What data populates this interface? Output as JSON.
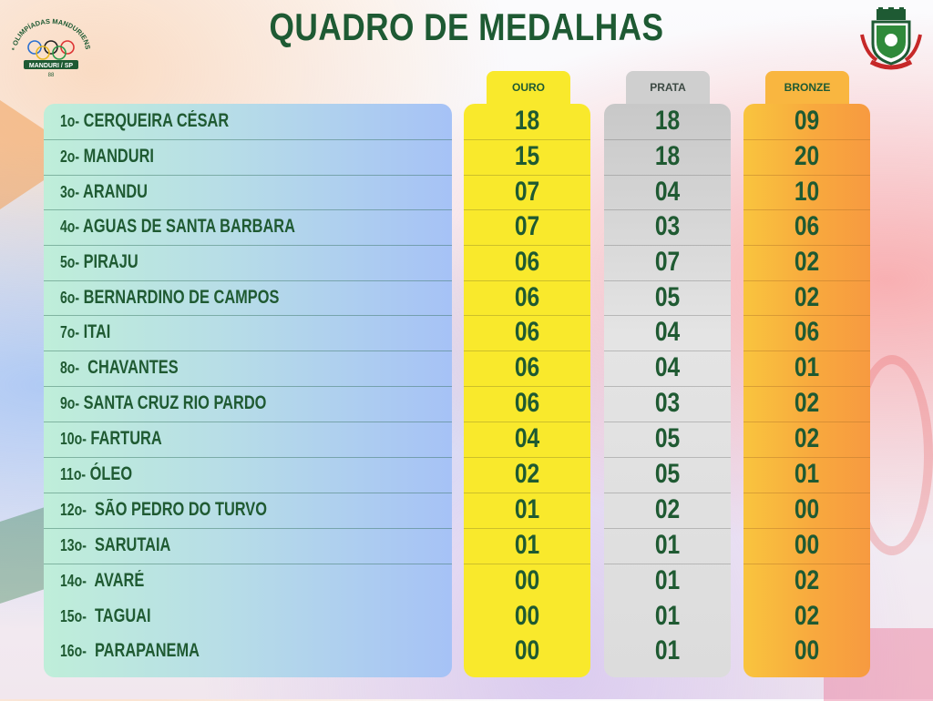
{
  "header": {
    "title": "QUADRO DE MEDALHAS",
    "logo_left_text": "2ª OLIMPÍADAS MANDURIENSE",
    "logo_left_badge": "MANDURI / SP",
    "logo_left_year": "88",
    "logo_right": "crest-icon"
  },
  "columns": {
    "ouro": "OURO",
    "prata": "PRATA",
    "bronze": "BRONZE"
  },
  "colors": {
    "title_green": "#1e5a33",
    "gold": "#f9e92c",
    "silver": "#d6d6d6",
    "bronze": "#f8a93e"
  },
  "rows": [
    {
      "pos": "1o-",
      "name": " CERQUEIRA CÉSAR",
      "ouro": "18",
      "prata": "18",
      "bronze": "09"
    },
    {
      "pos": "2o-",
      "name": " MANDURI",
      "ouro": "15",
      "prata": "18",
      "bronze": "20"
    },
    {
      "pos": "3o-",
      "name": " ARANDU",
      "ouro": "07",
      "prata": "04",
      "bronze": "10"
    },
    {
      "pos": "4o-",
      "name": " AGUAS DE SANTA BARBARA",
      "ouro": "07",
      "prata": "03",
      "bronze": "06"
    },
    {
      "pos": "5o-",
      "name": " PIRAJU",
      "ouro": "06",
      "prata": "07",
      "bronze": "02"
    },
    {
      "pos": "6o-",
      "name": " BERNARDINO DE CAMPOS",
      "ouro": "06",
      "prata": "05",
      "bronze": "02"
    },
    {
      "pos": "7o-",
      "name": " ITAI",
      "ouro": "06",
      "prata": "04",
      "bronze": "06"
    },
    {
      "pos": "8o-",
      "name": "  CHAVANTES",
      "ouro": "06",
      "prata": "04",
      "bronze": "01"
    },
    {
      "pos": "9o-",
      "name": " SANTA CRUZ RIO PARDO",
      "ouro": "06",
      "prata": "03",
      "bronze": "02"
    },
    {
      "pos": "10o-",
      "name": " FARTURA",
      "ouro": "04",
      "prata": "05",
      "bronze": "02"
    },
    {
      "pos": "11o-",
      "name": " ÓLEO",
      "ouro": "02",
      "prata": "05",
      "bronze": "01"
    },
    {
      "pos": "12o-",
      "name": "  SÃO PEDRO DO TURVO",
      "ouro": "01",
      "prata": "02",
      "bronze": "00"
    },
    {
      "pos": "13o-",
      "name": "  SARUTAIA",
      "ouro": "01",
      "prata": "01",
      "bronze": "00"
    },
    {
      "pos": "14o-",
      "name": "  AVARÉ",
      "ouro": "00",
      "prata": "01",
      "bronze": "02"
    },
    {
      "pos": "15o-",
      "name": "  TAGUAI",
      "ouro": "00",
      "prata": "01",
      "bronze": "02"
    },
    {
      "pos": "16o-",
      "name": "  PARAPANEMA",
      "ouro": "00",
      "prata": "01",
      "bronze": "00"
    }
  ]
}
